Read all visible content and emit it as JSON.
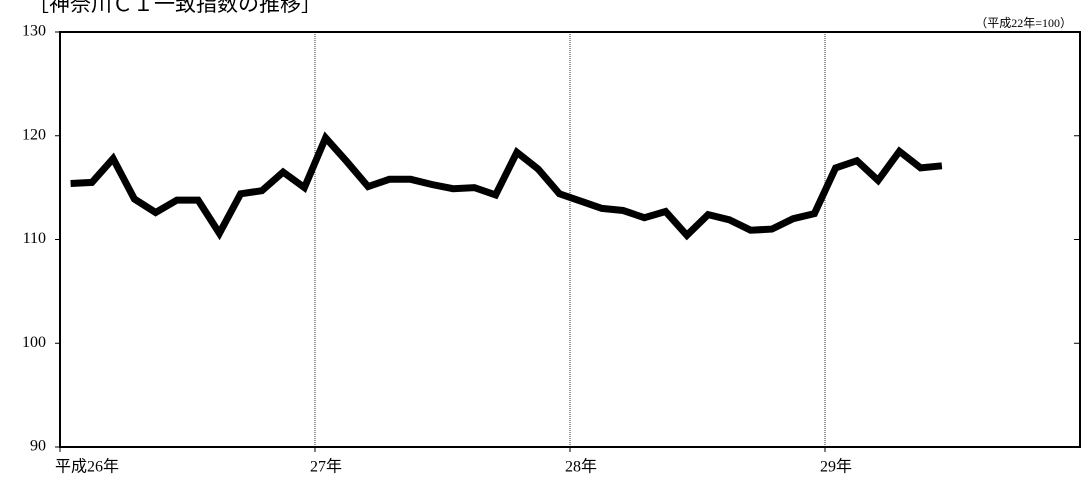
{
  "chart_data": {
    "type": "line",
    "title": "［神奈川ＣＩ一致指数の推移］",
    "subtitle": "（平成22年=100）",
    "categories": [
      "平成26年",
      null,
      null,
      null,
      null,
      null,
      null,
      null,
      null,
      null,
      null,
      null,
      "27年",
      null,
      null,
      null,
      null,
      null,
      null,
      null,
      null,
      null,
      null,
      null,
      "28年",
      null,
      null,
      null,
      null,
      null,
      null,
      null,
      null,
      null,
      null,
      null,
      "29年",
      null,
      null,
      null,
      null,
      null,
      null,
      null,
      null,
      null,
      null,
      null
    ],
    "series": [
      {
        "color": "#000000",
        "values": [
          115.4,
          115.5,
          117.8,
          113.9,
          112.6,
          113.8,
          113.8,
          110.6,
          114.4,
          114.7,
          116.5,
          115.0,
          119.8,
          117.5,
          115.1,
          115.8,
          115.8,
          115.3,
          114.9,
          115.0,
          114.3,
          118.4,
          116.8,
          114.4,
          113.7,
          113.0,
          112.8,
          112.1,
          112.7,
          110.4,
          112.4,
          111.9,
          110.9,
          111.0,
          112.0,
          112.5,
          116.9,
          117.6,
          115.7,
          118.5,
          116.9,
          117.1,
          null,
          null,
          null,
          null,
          null,
          null
        ]
      }
    ],
    "ylim": [
      90,
      130
    ],
    "yticks": [
      90,
      100,
      110,
      120,
      130
    ],
    "grid": true
  }
}
